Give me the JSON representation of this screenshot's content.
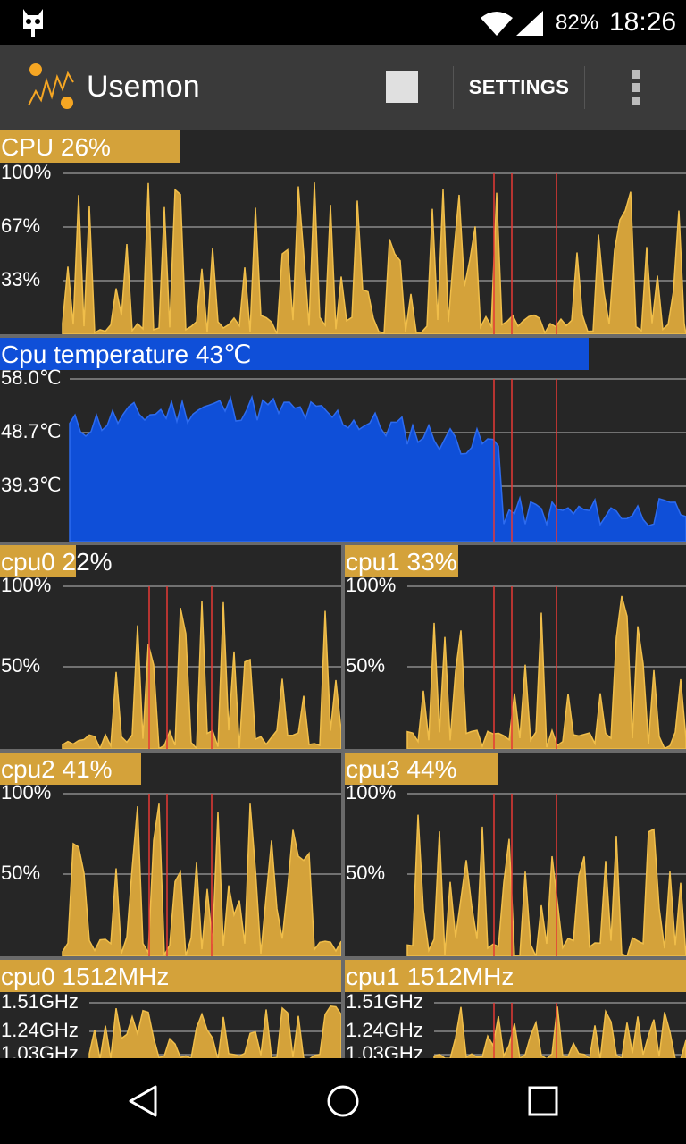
{
  "status_bar": {
    "battery": "82%",
    "time": "18:26"
  },
  "app_bar": {
    "title": "Usemon",
    "settings_label": "SETTINGS"
  },
  "colors": {
    "gold": "#D4A23A",
    "blue": "#0F4FD8",
    "grid": "#8a8a8a",
    "marker": "#e53935",
    "panel_bg": "#262626"
  },
  "panels": {
    "cpu": {
      "title": "CPU 26%",
      "value_pct": 26,
      "y_labels": [
        "100%",
        "67%",
        "33%"
      ]
    },
    "temp": {
      "title": "Cpu temperature 43℃",
      "y_labels": [
        "58.0℃",
        "48.7℃",
        "39.3℃"
      ]
    },
    "cpu0": {
      "title": "cpu0 22%",
      "value_pct": 22,
      "y_labels": [
        "100%",
        "50%"
      ]
    },
    "cpu1": {
      "title": "cpu1 33%",
      "value_pct": 33,
      "y_labels": [
        "100%",
        "50%"
      ]
    },
    "cpu2": {
      "title": "cpu2 41%",
      "value_pct": 41,
      "y_labels": [
        "100%",
        "50%"
      ]
    },
    "cpu3": {
      "title": "cpu3 44%",
      "value_pct": 44,
      "y_labels": [
        "100%",
        "50%"
      ]
    },
    "freq0": {
      "title": "cpu0 1512MHz",
      "y_labels": [
        "1.51GHz",
        "1.24GHz",
        "1.03GHz"
      ]
    },
    "freq1": {
      "title": "cpu1 1512MHz",
      "y_labels": [
        "1.51GHz",
        "1.24GHz",
        "1.03GHz"
      ]
    }
  }
}
